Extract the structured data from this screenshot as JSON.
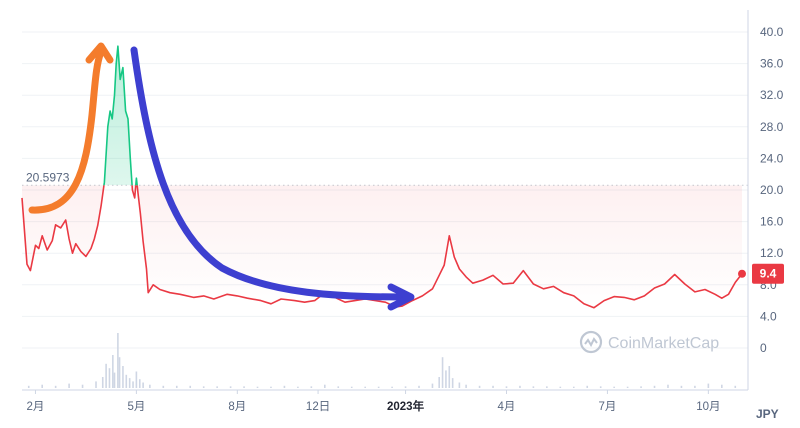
{
  "chart_data": {
    "type": "area",
    "currency_label": "JPY",
    "reference_value_label": "20.5973",
    "reference_value": 20.5973,
    "current_value_label": "9.4",
    "current_value": 9.4,
    "ylim": [
      -4,
      43
    ],
    "y_ticks": [
      {
        "value": 40,
        "label": "40.0"
      },
      {
        "value": 36,
        "label": "36.0"
      },
      {
        "value": 32,
        "label": "32.0"
      },
      {
        "value": 28,
        "label": "28.0"
      },
      {
        "value": 24,
        "label": "24.0"
      },
      {
        "value": 20,
        "label": "20.0"
      },
      {
        "value": 16,
        "label": "16.0"
      },
      {
        "value": 12,
        "label": "12.0"
      },
      {
        "value": 8,
        "label": "8.0"
      },
      {
        "value": 4,
        "label": "4.0"
      },
      {
        "value": 0,
        "label": "0"
      }
    ],
    "x_ticks": [
      {
        "label": "2月",
        "t": 1,
        "bold": false
      },
      {
        "label": "5月",
        "t": 4,
        "bold": false
      },
      {
        "label": "8月",
        "t": 7,
        "bold": false
      },
      {
        "label": "12日",
        "t": 9.4,
        "bold": false
      },
      {
        "label": "2023年",
        "t": 12,
        "bold": true
      },
      {
        "label": "4月",
        "t": 15,
        "bold": false
      },
      {
        "label": "7月",
        "t": 18,
        "bold": false
      },
      {
        "label": "10月",
        "t": 21,
        "bold": false
      }
    ],
    "x_range": [
      0.6,
      22.0
    ],
    "series": [
      {
        "values": [
          [
            0.6,
            19.0
          ],
          [
            0.75,
            10.6
          ],
          [
            0.85,
            9.8
          ],
          [
            1.0,
            13.0
          ],
          [
            1.1,
            12.6
          ],
          [
            1.2,
            14.2
          ],
          [
            1.35,
            12.4
          ],
          [
            1.5,
            13.6
          ],
          [
            1.6,
            15.6
          ],
          [
            1.75,
            15.2
          ],
          [
            1.9,
            16.2
          ],
          [
            2.0,
            13.8
          ],
          [
            2.1,
            12.0
          ],
          [
            2.2,
            13.2
          ],
          [
            2.35,
            12.2
          ],
          [
            2.5,
            11.6
          ],
          [
            2.65,
            12.6
          ],
          [
            2.75,
            13.8
          ],
          [
            2.85,
            15.5
          ],
          [
            2.95,
            18.0
          ],
          [
            3.05,
            21.0
          ],
          [
            3.15,
            28.0
          ],
          [
            3.22,
            30.0
          ],
          [
            3.28,
            29.0
          ],
          [
            3.35,
            32.0
          ],
          [
            3.4,
            36.0
          ],
          [
            3.45,
            38.2
          ],
          [
            3.52,
            34.0
          ],
          [
            3.6,
            35.5
          ],
          [
            3.68,
            30.0
          ],
          [
            3.75,
            29.0
          ],
          [
            3.82,
            24.0
          ],
          [
            3.88,
            20.0
          ],
          [
            3.95,
            19.0
          ],
          [
            4.0,
            21.5
          ],
          [
            4.05,
            19.5
          ],
          [
            4.12,
            17.0
          ],
          [
            4.2,
            13.5
          ],
          [
            4.3,
            10.0
          ],
          [
            4.35,
            7.0
          ],
          [
            4.5,
            8.0
          ],
          [
            4.7,
            7.4
          ],
          [
            5.0,
            7.0
          ],
          [
            5.3,
            6.8
          ],
          [
            5.7,
            6.4
          ],
          [
            6.0,
            6.6
          ],
          [
            6.3,
            6.2
          ],
          [
            6.7,
            6.8
          ],
          [
            7.0,
            6.6
          ],
          [
            7.3,
            6.3
          ],
          [
            7.7,
            6.0
          ],
          [
            8.0,
            5.6
          ],
          [
            8.3,
            6.2
          ],
          [
            8.7,
            6.0
          ],
          [
            9.0,
            5.8
          ],
          [
            9.3,
            6.0
          ],
          [
            9.6,
            7.0
          ],
          [
            9.9,
            6.4
          ],
          [
            10.2,
            5.8
          ],
          [
            10.5,
            6.0
          ],
          [
            10.8,
            6.2
          ],
          [
            11.1,
            6.0
          ],
          [
            11.4,
            5.8
          ],
          [
            11.7,
            5.2
          ],
          [
            11.9,
            5.3
          ],
          [
            12.2,
            6.0
          ],
          [
            12.5,
            6.6
          ],
          [
            12.8,
            7.5
          ],
          [
            13.0,
            9.2
          ],
          [
            13.15,
            10.5
          ],
          [
            13.3,
            14.2
          ],
          [
            13.45,
            11.5
          ],
          [
            13.6,
            10.0
          ],
          [
            13.8,
            9.0
          ],
          [
            14.0,
            8.2
          ],
          [
            14.3,
            8.6
          ],
          [
            14.6,
            9.2
          ],
          [
            14.9,
            8.1
          ],
          [
            15.2,
            8.2
          ],
          [
            15.5,
            9.8
          ],
          [
            15.8,
            8.1
          ],
          [
            16.1,
            7.5
          ],
          [
            16.4,
            7.8
          ],
          [
            16.7,
            7.0
          ],
          [
            17.0,
            6.6
          ],
          [
            17.3,
            5.6
          ],
          [
            17.6,
            5.1
          ],
          [
            17.9,
            6.0
          ],
          [
            18.2,
            6.5
          ],
          [
            18.5,
            6.4
          ],
          [
            18.8,
            6.1
          ],
          [
            19.1,
            6.6
          ],
          [
            19.4,
            7.6
          ],
          [
            19.7,
            8.1
          ],
          [
            20.0,
            9.3
          ],
          [
            20.3,
            8.1
          ],
          [
            20.6,
            7.1
          ],
          [
            20.9,
            7.4
          ],
          [
            21.2,
            6.8
          ],
          [
            21.4,
            6.3
          ],
          [
            21.6,
            6.8
          ],
          [
            21.8,
            8.3
          ],
          [
            22.0,
            9.4
          ]
        ]
      }
    ],
    "volume": [
      [
        0.8,
        2
      ],
      [
        1.2,
        3
      ],
      [
        1.6,
        2
      ],
      [
        2.0,
        4
      ],
      [
        2.4,
        3
      ],
      [
        2.8,
        6
      ],
      [
        3.0,
        10
      ],
      [
        3.1,
        22
      ],
      [
        3.2,
        18
      ],
      [
        3.3,
        30
      ],
      [
        3.35,
        14
      ],
      [
        3.45,
        50
      ],
      [
        3.5,
        28
      ],
      [
        3.6,
        20
      ],
      [
        3.7,
        12
      ],
      [
        3.8,
        9
      ],
      [
        3.9,
        6
      ],
      [
        4.0,
        15
      ],
      [
        4.1,
        8
      ],
      [
        4.2,
        5
      ],
      [
        4.4,
        3
      ],
      [
        4.8,
        2
      ],
      [
        5.2,
        2
      ],
      [
        5.6,
        2
      ],
      [
        6.0,
        1.5
      ],
      [
        6.4,
        1.5
      ],
      [
        6.8,
        1.5
      ],
      [
        7.2,
        1.5
      ],
      [
        7.6,
        1.2
      ],
      [
        8.0,
        1.2
      ],
      [
        8.4,
        2
      ],
      [
        8.8,
        1.2
      ],
      [
        9.2,
        1.5
      ],
      [
        9.6,
        3
      ],
      [
        10.0,
        1.5
      ],
      [
        10.4,
        1.2
      ],
      [
        10.8,
        1.2
      ],
      [
        11.2,
        1.2
      ],
      [
        11.6,
        1.2
      ],
      [
        12.0,
        1.5
      ],
      [
        12.4,
        2
      ],
      [
        12.8,
        4
      ],
      [
        13.0,
        10
      ],
      [
        13.1,
        28
      ],
      [
        13.2,
        16
      ],
      [
        13.3,
        20
      ],
      [
        13.4,
        9
      ],
      [
        13.6,
        5
      ],
      [
        13.8,
        3
      ],
      [
        14.2,
        2
      ],
      [
        14.6,
        2
      ],
      [
        15.0,
        1.5
      ],
      [
        15.4,
        2
      ],
      [
        15.8,
        1.5
      ],
      [
        16.2,
        1.5
      ],
      [
        16.6,
        1.2
      ],
      [
        17.0,
        1.2
      ],
      [
        17.4,
        2
      ],
      [
        17.8,
        1.5
      ],
      [
        18.2,
        1.2
      ],
      [
        18.6,
        1.2
      ],
      [
        19.0,
        1.5
      ],
      [
        19.4,
        2
      ],
      [
        19.8,
        3
      ],
      [
        20.2,
        2
      ],
      [
        20.6,
        2
      ],
      [
        21.0,
        4
      ],
      [
        21.4,
        3
      ],
      [
        21.8,
        2
      ]
    ],
    "watermark": "CoinMarketCap"
  }
}
